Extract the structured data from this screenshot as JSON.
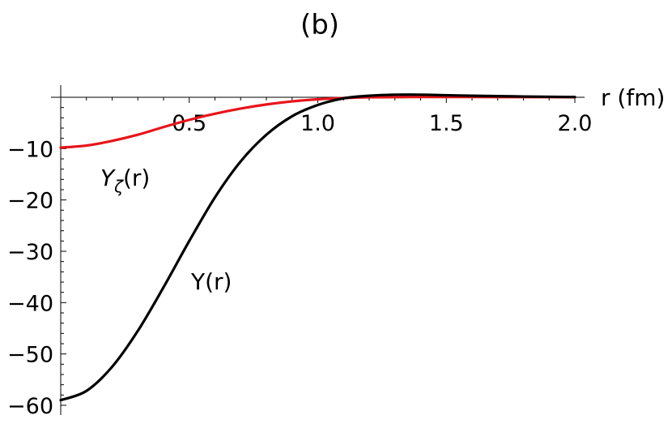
{
  "chart_data": {
    "type": "line",
    "panel_label": "(b)",
    "xlabel": "r (fm)",
    "ylabel": "",
    "xlim": [
      0,
      2.0
    ],
    "ylim": [
      -60,
      0
    ],
    "x_ticks": [
      {
        "value": 0.5,
        "label": "0.5"
      },
      {
        "value": 1.0,
        "label": "1.0"
      },
      {
        "value": 1.5,
        "label": "1.5"
      },
      {
        "value": 2.0,
        "label": "2.0"
      }
    ],
    "y_ticks": [
      {
        "value": -10,
        "label": "−10"
      },
      {
        "value": -20,
        "label": "−20"
      },
      {
        "value": -30,
        "label": "−30"
      },
      {
        "value": -40,
        "label": "−40"
      },
      {
        "value": -50,
        "label": "−50"
      },
      {
        "value": -60,
        "label": "−60"
      }
    ],
    "grid": false,
    "series": [
      {
        "key": "Y",
        "color": "#000000",
        "label_main": "Y",
        "label_sub": "",
        "label_suffix": "(r)",
        "x": [
          0.0,
          0.1,
          0.2,
          0.3,
          0.4,
          0.5,
          0.6,
          0.7,
          0.8,
          0.9,
          1.0,
          1.1,
          1.2,
          1.3,
          1.4,
          1.5,
          1.6,
          1.8,
          2.0
        ],
        "y": [
          -59.0,
          -57.2,
          -52.5,
          -45.5,
          -37.0,
          -28.0,
          -19.5,
          -12.5,
          -7.3,
          -3.7,
          -1.5,
          -0.2,
          0.3,
          0.5,
          0.5,
          0.4,
          0.3,
          0.15,
          0.05
        ]
      },
      {
        "key": "Yzeta",
        "color": "#e8141b",
        "label_main": "Y",
        "label_sub": "ζ",
        "label_suffix": "(r)",
        "x": [
          0.0,
          0.1,
          0.2,
          0.3,
          0.4,
          0.5,
          0.6,
          0.7,
          0.8,
          0.9,
          1.0,
          1.1,
          1.2,
          1.4,
          1.6,
          1.8,
          2.0
        ],
        "y": [
          -9.8,
          -9.4,
          -8.5,
          -7.3,
          -5.8,
          -4.4,
          -3.2,
          -2.2,
          -1.4,
          -0.8,
          -0.4,
          -0.15,
          0.0,
          0.05,
          0.05,
          0.03,
          0.02
        ]
      }
    ]
  }
}
